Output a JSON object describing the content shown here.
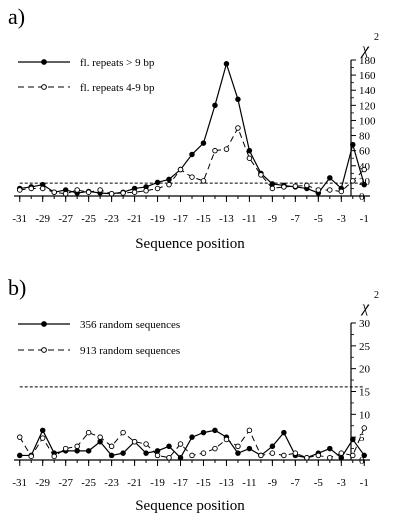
{
  "chart_data": [
    {
      "type": "line",
      "panel_label": "a)",
      "xlabel": "Sequence position",
      "ylabel": "χ",
      "ylabel_superscript": "2",
      "x": [
        -31,
        -30,
        -29,
        -28,
        -27,
        -26,
        -25,
        -24,
        -23,
        -22,
        -21,
        -20,
        -19,
        -18,
        -17,
        -16,
        -15,
        -14,
        -13,
        -12,
        -11,
        -10,
        -9,
        -8,
        -7,
        -6,
        -5,
        -4,
        -3,
        -2,
        -1
      ],
      "xticks": [
        -31,
        -29,
        -27,
        -25,
        -23,
        -21,
        -19,
        -17,
        -15,
        -13,
        -11,
        -9,
        -7,
        -5,
        -3,
        -1
      ],
      "xtick_labels": [
        "-31",
        "-29",
        "-27",
        "-25",
        "-23",
        "-21",
        "-19",
        "-17",
        "-15",
        "-13",
        "-11",
        "-9",
        "-7",
        "-5",
        "-3",
        "-1"
      ],
      "ylim": [
        0,
        180
      ],
      "yticks": [
        0,
        20,
        40,
        60,
        80,
        100,
        120,
        140,
        160,
        180
      ],
      "ytick_labels": [
        "0",
        "20",
        "40",
        "60",
        "80",
        "100",
        "120",
        "140",
        "160",
        "180"
      ],
      "threshold": 17,
      "legend_position": "top-left",
      "series": [
        {
          "name": "fl. repeats > 9 bp",
          "style": "solid",
          "marker": "filled",
          "values": [
            10,
            12,
            15,
            5,
            8,
            4,
            6,
            4,
            3,
            5,
            10,
            12,
            18,
            22,
            35,
            55,
            70,
            120,
            175,
            128,
            60,
            30,
            16,
            14,
            12,
            10,
            4,
            24,
            10,
            68,
            15
          ]
        },
        {
          "name": "fl. repeats 4-9 bp",
          "style": "dashed",
          "marker": "open",
          "values": [
            8,
            10,
            10,
            5,
            3,
            8,
            5,
            8,
            3,
            4,
            5,
            7,
            10,
            15,
            35,
            25,
            20,
            60,
            62,
            90,
            50,
            28,
            10,
            12,
            13,
            14,
            8,
            8,
            6,
            20,
            35
          ]
        }
      ]
    },
    {
      "type": "line",
      "panel_label": "b)",
      "xlabel": "Sequence position",
      "ylabel": "χ",
      "ylabel_superscript": "2",
      "x": [
        -31,
        -30,
        -29,
        -28,
        -27,
        -26,
        -25,
        -24,
        -23,
        -22,
        -21,
        -20,
        -19,
        -18,
        -17,
        -16,
        -15,
        -14,
        -13,
        -12,
        -11,
        -10,
        -9,
        -8,
        -7,
        -6,
        -5,
        -4,
        -3,
        -2,
        -1
      ],
      "xticks": [
        -31,
        -29,
        -27,
        -25,
        -23,
        -21,
        -19,
        -17,
        -15,
        -13,
        -11,
        -9,
        -7,
        -5,
        -3,
        -1
      ],
      "xtick_labels": [
        "-31",
        "-29",
        "-27",
        "-25",
        "-23",
        "-21",
        "-19",
        "-17",
        "-15",
        "-13",
        "-11",
        "-9",
        "-7",
        "-5",
        "-3",
        "-1"
      ],
      "ylim": [
        0,
        30
      ],
      "yticks": [
        0,
        5,
        10,
        15,
        20,
        25,
        30
      ],
      "ytick_labels": [
        "0",
        "5",
        "10",
        "15",
        "20",
        "25",
        "30"
      ],
      "threshold": 16,
      "legend_position": "top-left",
      "series": [
        {
          "name": "356 random sequences",
          "style": "solid",
          "marker": "filled",
          "values": [
            1,
            1,
            6.5,
            1.5,
            2,
            2,
            2,
            4,
            1,
            1.5,
            4,
            1.5,
            2,
            3,
            0.5,
            5,
            6,
            6.5,
            5,
            1.5,
            2.5,
            1,
            3,
            6,
            1,
            0.5,
            1.5,
            2.5,
            0.5,
            4.5,
            1
          ]
        },
        {
          "name": "913 random sequences",
          "style": "dashed",
          "marker": "open",
          "values": [
            5,
            0.8,
            4.8,
            0.8,
            2.5,
            3,
            6,
            5,
            3,
            6,
            4,
            3.5,
            1,
            0.5,
            3.5,
            1,
            1.5,
            2.5,
            4.5,
            3,
            6.5,
            1,
            1.5,
            1,
            1.5,
            0.5,
            1,
            0.5,
            1.5,
            1,
            7
          ]
        }
      ]
    }
  ]
}
